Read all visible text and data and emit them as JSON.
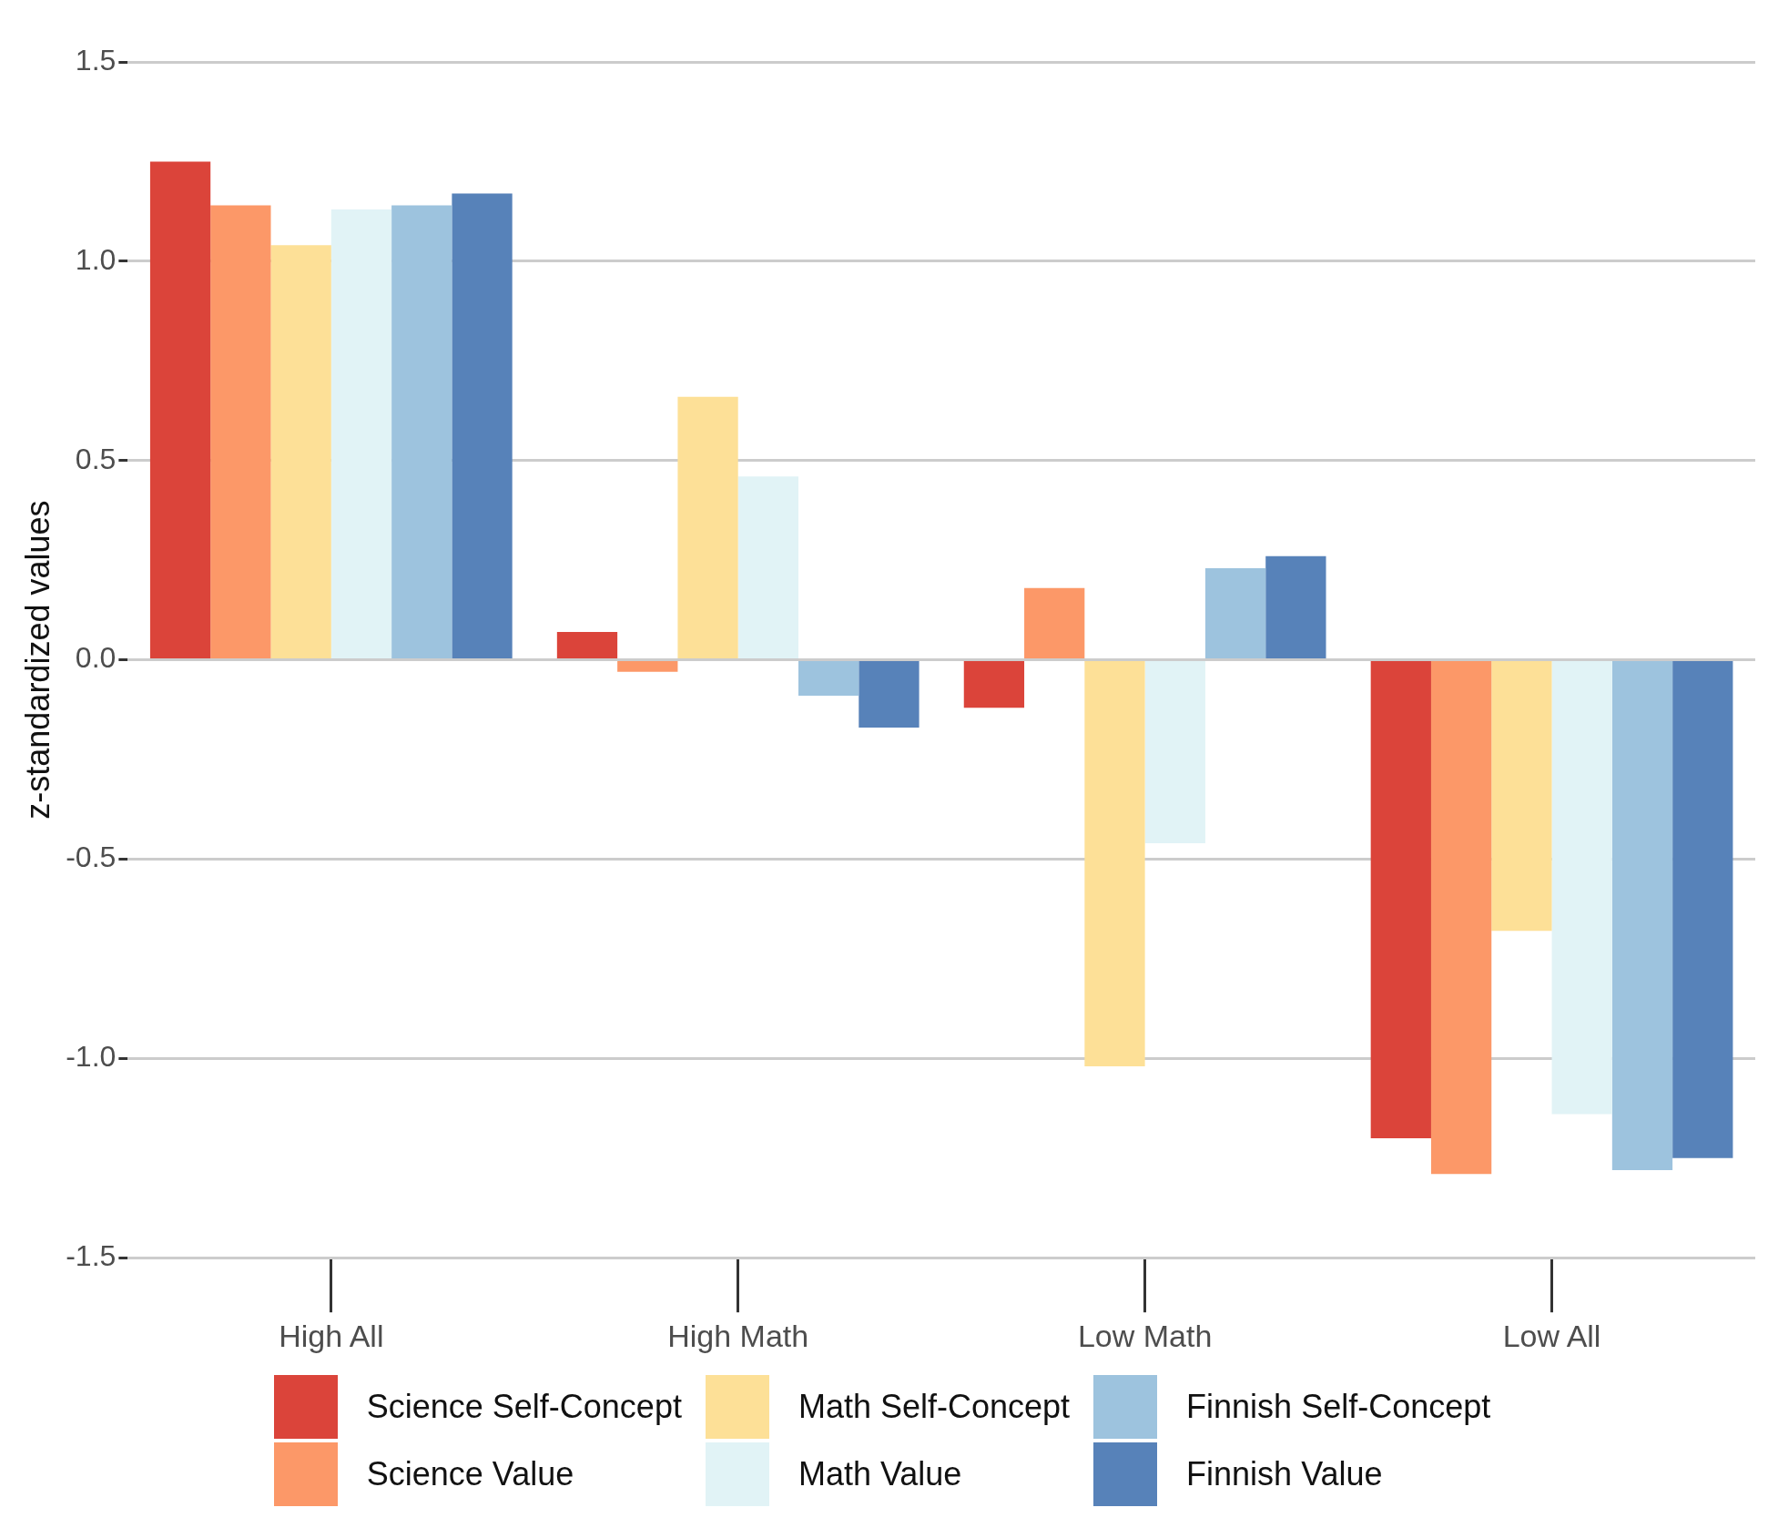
{
  "chart_data": {
    "type": "bar",
    "ylabel": "z-standardized values",
    "categories": [
      "High All",
      "High Math",
      "Low Math",
      "Low All"
    ],
    "series": [
      {
        "name": "Science Self-Concept",
        "color": "#db443a",
        "values": [
          1.25,
          0.07,
          -0.12,
          -1.2
        ]
      },
      {
        "name": "Science Value",
        "color": "#fc9868",
        "values": [
          1.14,
          -0.03,
          0.18,
          -1.29
        ]
      },
      {
        "name": "Math Self-Concept",
        "color": "#fde097",
        "values": [
          1.04,
          0.66,
          -1.02,
          -0.68
        ]
      },
      {
        "name": "Math Value",
        "color": "#e1f3f6",
        "values": [
          1.13,
          0.46,
          -0.46,
          -1.14
        ]
      },
      {
        "name": "Finnish Self-Concept",
        "color": "#9dc3de",
        "values": [
          1.14,
          -0.09,
          0.23,
          -1.28
        ]
      },
      {
        "name": "Finnish Value",
        "color": "#5782b9",
        "values": [
          1.17,
          -0.17,
          0.26,
          -1.25
        ]
      }
    ],
    "ylim": [
      -1.5,
      1.5
    ],
    "yticks": [
      {
        "value": -1.5,
        "label": "-1.5"
      },
      {
        "value": -1,
        "label": "-1.0"
      },
      {
        "value": -0.5,
        "label": "-0.5"
      },
      {
        "value": 0,
        "label": "0.0"
      },
      {
        "value": 0.5,
        "label": "0.5"
      },
      {
        "value": 1,
        "label": "1.0"
      },
      {
        "value": 1.5,
        "label": "1.5"
      }
    ],
    "grid": "y",
    "legend": "bottom"
  }
}
